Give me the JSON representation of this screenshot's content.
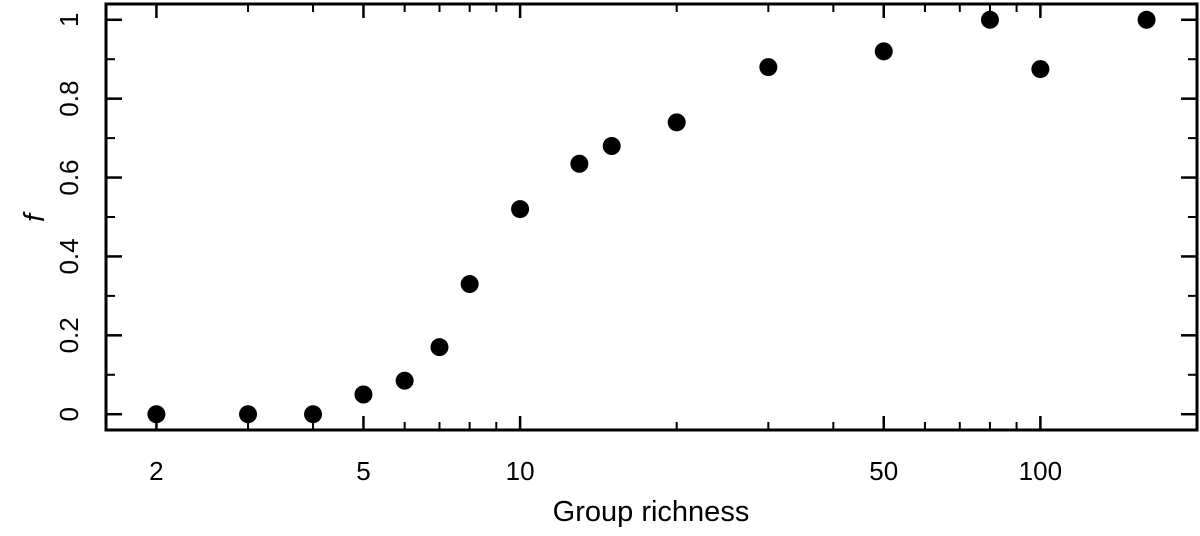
{
  "chart_data": {
    "type": "scatter",
    "title": "",
    "xlabel": "Group richness",
    "ylabel": "f",
    "xscale": "log",
    "xlim": [
      1.6,
      200
    ],
    "ylim": [
      -0.04,
      1.04
    ],
    "grid": false,
    "legend": "none",
    "x_tick_labels": [
      {
        "value": 2,
        "label": "2"
      },
      {
        "value": 5,
        "label": "5"
      },
      {
        "value": 10,
        "label": "10"
      },
      {
        "value": 50,
        "label": "50"
      },
      {
        "value": 100,
        "label": "100"
      }
    ],
    "x_minor_ticks": [
      3,
      4,
      6,
      7,
      8,
      9,
      20,
      30,
      40,
      60,
      70,
      80,
      90,
      200
    ],
    "y_tick_labels": [
      {
        "value": 0,
        "label": "0"
      },
      {
        "value": 0.2,
        "label": "0.2"
      },
      {
        "value": 0.4,
        "label": "0.4"
      },
      {
        "value": 0.6,
        "label": "0.6"
      },
      {
        "value": 0.8,
        "label": "0.8"
      },
      {
        "value": 1,
        "label": "1"
      }
    ],
    "y_minor_ticks": [
      0.1,
      0.3,
      0.5,
      0.7,
      0.9
    ],
    "series": [
      {
        "points": [
          {
            "x": 2,
            "y": 0.0
          },
          {
            "x": 3,
            "y": 0.0
          },
          {
            "x": 4,
            "y": 0.0
          },
          {
            "x": 5,
            "y": 0.05
          },
          {
            "x": 6,
            "y": 0.085
          },
          {
            "x": 7,
            "y": 0.17
          },
          {
            "x": 8,
            "y": 0.33
          },
          {
            "x": 10,
            "y": 0.52
          },
          {
            "x": 13,
            "y": 0.635
          },
          {
            "x": 15,
            "y": 0.68
          },
          {
            "x": 20,
            "y": 0.74
          },
          {
            "x": 30,
            "y": 0.88
          },
          {
            "x": 50,
            "y": 0.92
          },
          {
            "x": 80,
            "y": 1.0
          },
          {
            "x": 100,
            "y": 0.875
          },
          {
            "x": 160,
            "y": 1.0
          }
        ],
        "color": "#000000"
      }
    ]
  }
}
